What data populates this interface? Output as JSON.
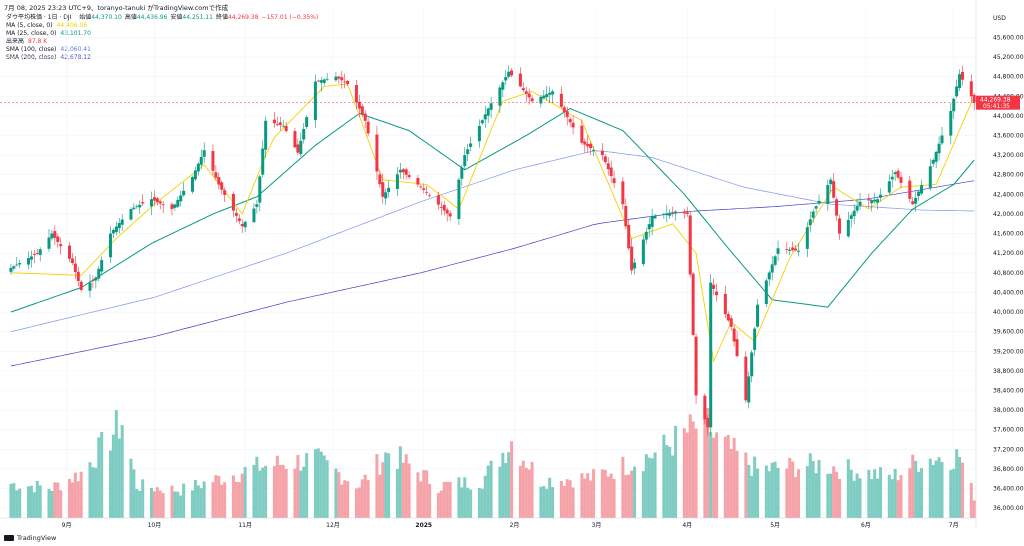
{
  "header": {
    "caption": "7月 08, 2025 23:23 UTC+9、toranyo-tanuki がTradingView.comで作成"
  },
  "legend": {
    "symbol": "ダウ平均株価 · 1日 · DJI",
    "ohlc": [
      {
        "label": "始値",
        "value": "44,370.10",
        "color": "#089981"
      },
      {
        "label": "高値",
        "value": "44,436.96",
        "color": "#089981"
      },
      {
        "label": "安値",
        "value": "44,251.11",
        "color": "#089981"
      },
      {
        "label": "終値",
        "value": "44,269.38",
        "color": "#f23645"
      },
      {
        "label": "",
        "value": "−157.01 (−0.35%)",
        "color": "#f23645"
      }
    ],
    "indicators": [
      {
        "name": "MA (5, close, 0)",
        "value": "44,406.06",
        "color": "#f5d000"
      },
      {
        "name": "MA (25, close, 0)",
        "value": "43,101.70",
        "color": "#089981"
      },
      {
        "name": "出来高",
        "value": "87.8 K",
        "color": "#f23645"
      },
      {
        "name": "SMA (100, close)",
        "value": "42,060.41",
        "color": "#5b7ae6"
      },
      {
        "name": "SMA (200, close)",
        "value": "42,678.12",
        "color": "#3f3fc7"
      }
    ]
  },
  "footer": {
    "brand": "TradingView"
  },
  "chart_data": {
    "type": "candlestick",
    "currency": "USD",
    "y_axis_ticks": [
      36000,
      36400,
      36800,
      37200,
      37600,
      38000,
      38400,
      38800,
      39200,
      39600,
      40000,
      40400,
      40800,
      41200,
      41600,
      42000,
      42400,
      42800,
      43200,
      43600,
      44000,
      44400,
      44800,
      45200,
      45600
    ],
    "ylim": [
      35800,
      46200
    ],
    "x_axis_labels": [
      {
        "label": "9月",
        "date": "2024-09-01",
        "bold": false
      },
      {
        "label": "10月",
        "date": "2024-10-01",
        "bold": false
      },
      {
        "label": "11月",
        "date": "2024-11-01",
        "bold": false
      },
      {
        "label": "12月",
        "date": "2024-12-01",
        "bold": false
      },
      {
        "label": "2025",
        "date": "2025-01-01",
        "bold": true
      },
      {
        "label": "2月",
        "date": "2025-02-01",
        "bold": false
      },
      {
        "label": "3月",
        "date": "2025-03-01",
        "bold": false
      },
      {
        "label": "4月",
        "date": "2025-04-01",
        "bold": false
      },
      {
        "label": "5月",
        "date": "2025-05-01",
        "bold": false
      },
      {
        "label": "6月",
        "date": "2025-06-01",
        "bold": false
      },
      {
        "label": "7月",
        "date": "2025-07-01",
        "bold": false
      }
    ],
    "price_path": [
      [
        "2024-08-13",
        40900
      ],
      [
        "2024-08-22",
        41200
      ],
      [
        "2024-08-27",
        41600
      ],
      [
        "2024-09-03",
        41000
      ],
      [
        "2024-09-06",
        40450
      ],
      [
        "2024-09-11",
        40700
      ],
      [
        "2024-09-16",
        41600
      ],
      [
        "2024-09-23",
        42100
      ],
      [
        "2024-09-30",
        42300
      ],
      [
        "2024-10-07",
        42100
      ],
      [
        "2024-10-14",
        42750
      ],
      [
        "2024-10-18",
        43300
      ],
      [
        "2024-10-23",
        42600
      ],
      [
        "2024-10-31",
        41750
      ],
      [
        "2024-11-05",
        42200
      ],
      [
        "2024-11-08",
        43900
      ],
      [
        "2024-11-14",
        43800
      ],
      [
        "2024-11-19",
        43250
      ],
      [
        "2024-11-25",
        44700
      ],
      [
        "2024-12-02",
        44800
      ],
      [
        "2024-12-06",
        44650
      ],
      [
        "2024-12-12",
        43900
      ],
      [
        "2024-12-18",
        42350
      ],
      [
        "2024-12-24",
        42900
      ],
      [
        "2024-12-31",
        42550
      ],
      [
        "2025-01-10",
        41950
      ],
      [
        "2025-01-15",
        43200
      ],
      [
        "2025-01-23",
        44150
      ],
      [
        "2025-01-30",
        44900
      ],
      [
        "2025-02-07",
        44300
      ],
      [
        "2025-02-14",
        44500
      ],
      [
        "2025-02-24",
        43450
      ],
      [
        "2025-03-03",
        43200
      ],
      [
        "2025-03-10",
        42200
      ],
      [
        "2025-03-13",
        40850
      ],
      [
        "2025-03-20",
        41950
      ],
      [
        "2025-03-28",
        42050
      ],
      [
        "2025-04-01",
        42000
      ],
      [
        "2025-04-04",
        38300
      ],
      [
        "2025-04-08",
        37650
      ],
      [
        "2025-04-09",
        40600
      ],
      [
        "2025-04-16",
        39700
      ],
      [
        "2025-04-21",
        38200
      ],
      [
        "2025-04-25",
        40150
      ],
      [
        "2025-05-02",
        41300
      ],
      [
        "2025-05-09",
        41250
      ],
      [
        "2025-05-14",
        42050
      ],
      [
        "2025-05-20",
        42700
      ],
      [
        "2025-05-23",
        41600
      ],
      [
        "2025-05-30",
        42250
      ],
      [
        "2025-06-05",
        42300
      ],
      [
        "2025-06-11",
        42850
      ],
      [
        "2025-06-17",
        42200
      ],
      [
        "2025-06-24",
        43100
      ],
      [
        "2025-06-30",
        44100
      ],
      [
        "2025-07-03",
        44850
      ],
      [
        "2025-07-07",
        44400
      ],
      [
        "2025-07-08",
        44269
      ]
    ],
    "volume_path": [
      [
        "2024-08-13",
        0.32
      ],
      [
        "2024-08-27",
        0.28
      ],
      [
        "2024-09-06",
        0.42
      ],
      [
        "2024-09-20",
        0.9
      ],
      [
        "2024-09-25",
        0.3
      ],
      [
        "2024-10-10",
        0.26
      ],
      [
        "2024-11-06",
        0.48
      ],
      [
        "2024-11-25",
        0.55
      ],
      [
        "2024-12-10",
        0.3
      ],
      [
        "2024-12-20",
        0.62
      ],
      [
        "2025-01-06",
        0.3
      ],
      [
        "2025-01-21",
        0.35
      ],
      [
        "2025-01-31",
        0.72
      ],
      [
        "2025-02-10",
        0.35
      ],
      [
        "2025-02-28",
        0.38
      ],
      [
        "2025-03-21",
        0.6
      ],
      [
        "2025-04-04",
        0.85
      ],
      [
        "2025-04-07",
        1.0
      ],
      [
        "2025-04-10",
        0.75
      ],
      [
        "2025-04-25",
        0.45
      ],
      [
        "2025-05-16",
        0.5
      ],
      [
        "2025-06-10",
        0.38
      ],
      [
        "2025-06-20",
        0.55
      ],
      [
        "2025-07-03",
        0.58
      ],
      [
        "2025-07-08",
        0.2
      ]
    ],
    "ma5": [
      [
        "2024-08-13",
        40800
      ],
      [
        "2024-09-06",
        40750
      ],
      [
        "2024-09-18",
        41500
      ],
      [
        "2024-10-01",
        42200
      ],
      [
        "2024-10-18",
        43000
      ],
      [
        "2024-10-31",
        42000
      ],
      [
        "2024-11-10",
        43500
      ],
      [
        "2024-11-28",
        44600
      ],
      [
        "2024-12-06",
        44650
      ],
      [
        "2024-12-18",
        42700
      ],
      [
        "2025-01-02",
        42600
      ],
      [
        "2025-01-13",
        42100
      ],
      [
        "2025-01-28",
        44300
      ],
      [
        "2025-02-07",
        44500
      ],
      [
        "2025-02-24",
        43900
      ],
      [
        "2025-03-13",
        41500
      ],
      [
        "2025-03-27",
        41800
      ],
      [
        "2025-04-04",
        41200
      ],
      [
        "2025-04-10",
        39000
      ],
      [
        "2025-04-16",
        39800
      ],
      [
        "2025-04-24",
        39400
      ],
      [
        "2025-05-06",
        41100
      ],
      [
        "2025-05-21",
        42550
      ],
      [
        "2025-06-02",
        42100
      ],
      [
        "2025-06-13",
        42550
      ],
      [
        "2025-06-25",
        42600
      ],
      [
        "2025-07-08",
        44406
      ]
    ],
    "ma25": [
      [
        "2024-08-13",
        40000
      ],
      [
        "2024-09-06",
        40500
      ],
      [
        "2024-09-30",
        41400
      ],
      [
        "2024-10-21",
        42000
      ],
      [
        "2024-11-05",
        42350
      ],
      [
        "2024-11-25",
        43400
      ],
      [
        "2024-12-10",
        44050
      ],
      [
        "2024-12-27",
        43700
      ],
      [
        "2025-01-15",
        42900
      ],
      [
        "2025-02-05",
        43600
      ],
      [
        "2025-02-20",
        44150
      ],
      [
        "2025-03-10",
        43700
      ],
      [
        "2025-03-31",
        42400
      ],
      [
        "2025-04-15",
        41300
      ],
      [
        "2025-04-30",
        40250
      ],
      [
        "2025-05-19",
        40100
      ],
      [
        "2025-06-03",
        41200
      ],
      [
        "2025-06-17",
        42100
      ],
      [
        "2025-07-01",
        42600
      ],
      [
        "2025-07-08",
        43101
      ]
    ],
    "sma100": [
      [
        "2024-08-13",
        39600
      ],
      [
        "2024-10-01",
        40300
      ],
      [
        "2024-11-15",
        41200
      ],
      [
        "2024-12-31",
        42250
      ],
      [
        "2025-02-01",
        42900
      ],
      [
        "2025-03-01",
        43300
      ],
      [
        "2025-03-20",
        43150
      ],
      [
        "2025-04-20",
        42550
      ],
      [
        "2025-05-20",
        42200
      ],
      [
        "2025-06-20",
        42080
      ],
      [
        "2025-07-08",
        42060
      ]
    ],
    "sma200": [
      [
        "2024-08-13",
        38900
      ],
      [
        "2024-10-01",
        39500
      ],
      [
        "2024-11-15",
        40200
      ],
      [
        "2024-12-31",
        40800
      ],
      [
        "2025-02-01",
        41300
      ],
      [
        "2025-03-01",
        41800
      ],
      [
        "2025-04-01",
        42050
      ],
      [
        "2025-05-01",
        42150
      ],
      [
        "2025-06-01",
        42300
      ],
      [
        "2025-07-08",
        42678
      ]
    ],
    "last_price": {
      "value": "44,269.38",
      "countdown": "05:41:35",
      "color": "#f23645"
    },
    "current_price": {
      "value": 44269.38
    },
    "series_colors": {
      "up": "#089981",
      "down": "#f23645",
      "volume_up": "#7fccc2",
      "volume_down": "#f5a3a8"
    }
  }
}
